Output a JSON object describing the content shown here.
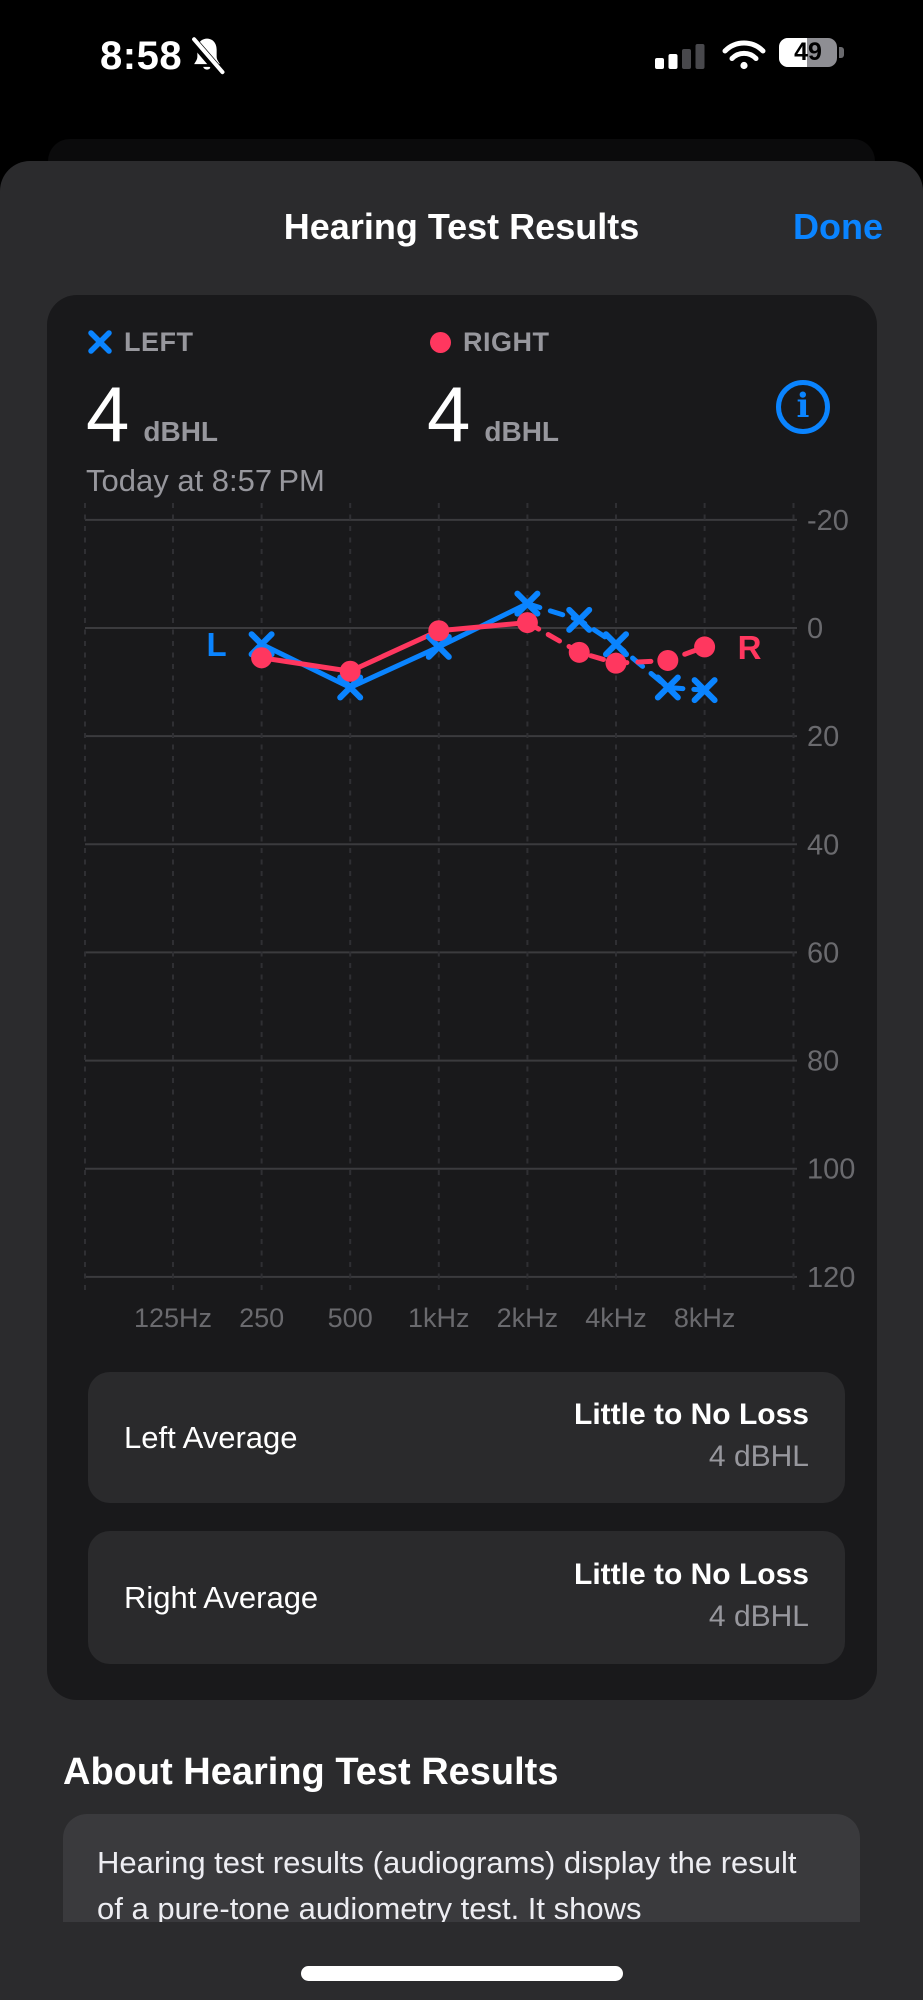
{
  "status_bar": {
    "time": "8:58",
    "battery_percent": "49"
  },
  "nav": {
    "title": "Hearing Test Results",
    "done_label": "Done"
  },
  "summary": {
    "left": {
      "legend": "LEFT",
      "value": "4",
      "unit": "dBHL"
    },
    "right": {
      "legend": "RIGHT",
      "value": "4",
      "unit": "dBHL"
    },
    "date": "Today at 8:57 PM"
  },
  "colors": {
    "left_blue": "#0a84ff",
    "right_pink": "#ff375f",
    "axis_gray": "#6a6a6e",
    "grid_solid": "#3b3b3e",
    "grid_dashed": "#2f2f33"
  },
  "chart_data": {
    "type": "line",
    "title": "Audiogram",
    "x_unit": "Hz",
    "ylabel": "dBHL",
    "ylim": [
      -20,
      120
    ],
    "y_ticks": [
      -20,
      0,
      20,
      40,
      60,
      80,
      100,
      120
    ],
    "x_tick_labels": [
      "125Hz",
      "250",
      "500",
      "1kHz",
      "2kHz",
      "4kHz",
      "8kHz"
    ],
    "x_tick_freqs": [
      125,
      250,
      500,
      1000,
      2000,
      4000,
      8000
    ],
    "frequencies_hz": [
      250,
      500,
      1000,
      2000,
      3000,
      4000,
      6000,
      8000
    ],
    "solid_until_hz": 2000,
    "series": [
      {
        "name": "Left",
        "ear_label": "L",
        "marker": "x",
        "color": "#0a84ff",
        "values_dbhl": [
          3,
          11,
          3.5,
          -4.5,
          -1.5,
          3,
          11,
          11.5
        ]
      },
      {
        "name": "Right",
        "ear_label": "R",
        "marker": "circle",
        "color": "#ff375f",
        "values_dbhl": [
          5.5,
          8,
          0.5,
          -1,
          4.5,
          6.5,
          6,
          3.5
        ]
      }
    ]
  },
  "rows": [
    {
      "label": "Left Average",
      "status": "Little to No Loss",
      "value": "4 dBHL"
    },
    {
      "label": "Right Average",
      "status": "Little to No Loss",
      "value": "4 dBHL"
    }
  ],
  "about": {
    "title": "About Hearing Test Results",
    "body": "Hearing test results (audiograms) display the result of a pure-tone audiometry test. It shows"
  }
}
